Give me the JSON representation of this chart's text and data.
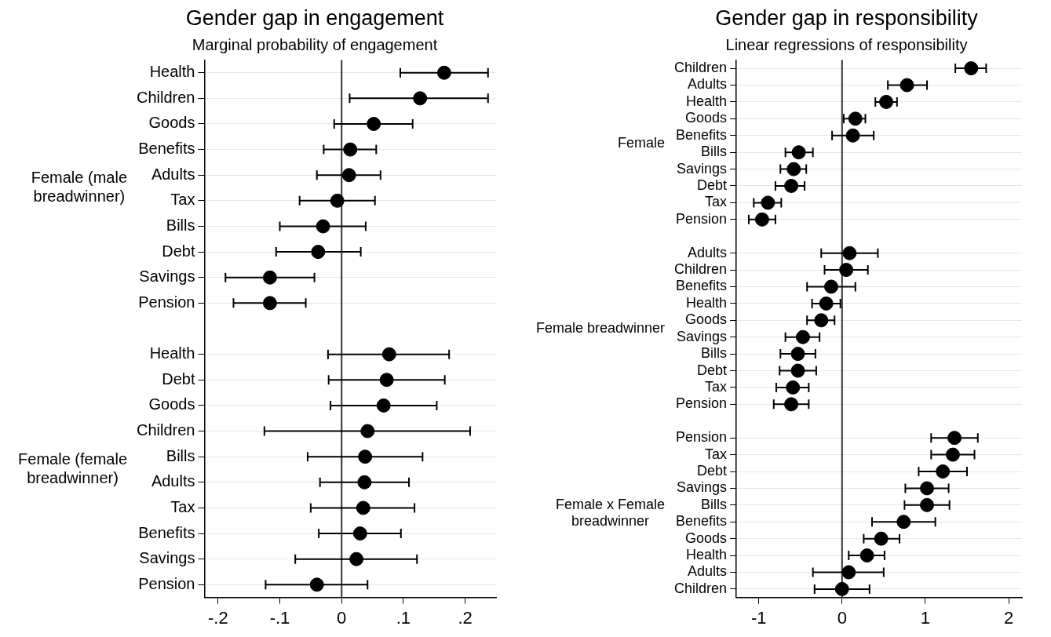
{
  "chart_data": [
    {
      "type": "scatter",
      "orientation": "horizontal",
      "title": "Gender gap in engagement",
      "subtitle": "Marginal probability of engagement",
      "categories": [
        "Health",
        "Children",
        "Goods",
        "Benefits",
        "Adults",
        "Tax",
        "Bills",
        "Debt",
        "Savings",
        "Pension",
        null,
        "Health",
        "Debt",
        "Goods",
        "Children",
        "Bills",
        "Adults",
        "Tax",
        "Benefits",
        "Savings",
        "Pension"
      ],
      "values": [
        0.166,
        0.127,
        0.052,
        0.014,
        0.012,
        -0.007,
        -0.03,
        -0.038,
        -0.116,
        -0.116,
        null,
        0.077,
        0.073,
        0.068,
        0.042,
        0.038,
        0.037,
        0.035,
        0.03,
        0.024,
        -0.04
      ],
      "errors": [
        [
          0.095,
          0.237
        ],
        [
          0.013,
          0.237
        ],
        [
          -0.012,
          0.115
        ],
        [
          -0.029,
          0.056
        ],
        [
          -0.04,
          0.063
        ],
        [
          -0.068,
          0.054
        ],
        [
          -0.1,
          0.039
        ],
        [
          -0.106,
          0.031
        ],
        [
          -0.188,
          -0.044
        ],
        [
          -0.175,
          -0.058
        ],
        null,
        [
          -0.022,
          0.174
        ],
        [
          -0.021,
          0.167
        ],
        [
          -0.018,
          0.154
        ],
        [
          -0.125,
          0.208
        ],
        [
          -0.055,
          0.131
        ],
        [
          -0.035,
          0.109
        ],
        [
          -0.05,
          0.118
        ],
        [
          -0.037,
          0.096
        ],
        [
          -0.075,
          0.122
        ],
        [
          -0.123,
          0.042
        ]
      ],
      "color": "#000000",
      "marker": "circle",
      "grid": "y",
      "xlim": [
        -0.222,
        0.25
      ],
      "xticks": [
        {
          "value": -0.2,
          "label": "-.2"
        },
        {
          "value": -0.1,
          "label": "-.1"
        },
        0,
        {
          "value": 0.1,
          "label": ".1"
        },
        {
          "value": 0.2,
          "label": ".2"
        }
      ],
      "ref_lines": [
        {
          "axis": "x",
          "value": 0,
          "color": "#333333"
        }
      ],
      "annotations": [
        "Female (male breadwinner)",
        "Female (female breadwinner)"
      ]
    },
    {
      "type": "scatter",
      "orientation": "horizontal",
      "title": "Gender gap in responsibility",
      "subtitle": "Linear regressions of responsibility",
      "categories": [
        "Children",
        "Adults",
        "Health",
        "Goods",
        "Benefits",
        "Bills",
        "Savings",
        "Debt",
        "Tax",
        "Pension",
        null,
        "Adults",
        "Children",
        "Benefits",
        "Health",
        "Goods",
        "Savings",
        "Bills",
        "Debt",
        "Tax",
        "Pension",
        null,
        "Pension",
        "Tax",
        "Debt",
        "Savings",
        "Bills",
        "Benefits",
        "Goods",
        "Health",
        "Adults",
        "Children"
      ],
      "values": [
        1.55,
        0.78,
        0.53,
        0.16,
        0.13,
        -0.52,
        -0.58,
        -0.61,
        -0.89,
        -0.96,
        null,
        0.09,
        0.05,
        -0.13,
        -0.19,
        -0.25,
        -0.47,
        -0.53,
        -0.53,
        -0.59,
        -0.61,
        null,
        1.35,
        1.33,
        1.21,
        1.02,
        1.02,
        0.74,
        0.47,
        0.3,
        0.08,
        0.0
      ],
      "errors": [
        [
          1.36,
          1.73
        ],
        [
          0.55,
          1.02
        ],
        [
          0.4,
          0.66
        ],
        [
          0.02,
          0.28
        ],
        [
          -0.12,
          0.38
        ],
        [
          -0.68,
          -0.35
        ],
        [
          -0.74,
          -0.43
        ],
        [
          -0.8,
          -0.45
        ],
        [
          -1.06,
          -0.73
        ],
        [
          -1.12,
          -0.8
        ],
        null,
        [
          -0.25,
          0.43
        ],
        [
          -0.21,
          0.31
        ],
        [
          -0.42,
          0.16
        ],
        [
          -0.36,
          -0.02
        ],
        [
          -0.42,
          -0.09
        ],
        [
          -0.68,
          -0.27
        ],
        [
          -0.74,
          -0.32
        ],
        [
          -0.75,
          -0.31
        ],
        [
          -0.79,
          -0.4
        ],
        [
          -0.82,
          -0.4
        ],
        null,
        [
          1.07,
          1.63
        ],
        [
          1.07,
          1.59
        ],
        [
          0.92,
          1.5
        ],
        [
          0.76,
          1.28
        ],
        [
          0.75,
          1.29
        ],
        [
          0.36,
          1.12
        ],
        [
          0.26,
          0.69
        ],
        [
          0.08,
          0.51
        ],
        [
          -0.35,
          0.5
        ],
        [
          -0.33,
          0.33
        ]
      ],
      "color": "#000000",
      "marker": "circle",
      "grid": "y",
      "xlim": [
        -1.27,
        2.16
      ],
      "xticks": [
        -1,
        0,
        1,
        2
      ],
      "ref_lines": [
        {
          "axis": "x",
          "value": 0,
          "color": "#333333"
        }
      ],
      "annotations": [
        "Female",
        "Female breadwinner",
        "Female x Female breadwinner"
      ]
    }
  ]
}
